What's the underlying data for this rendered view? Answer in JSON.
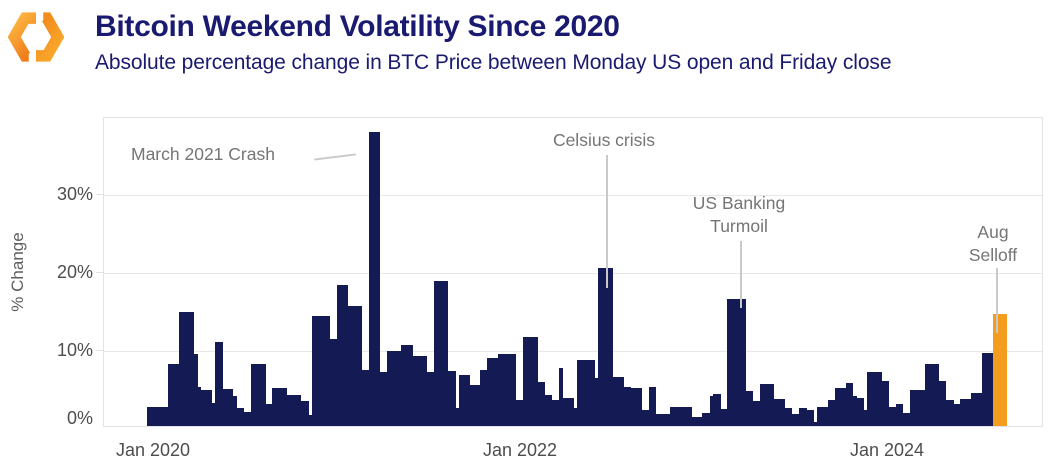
{
  "header": {
    "title": "Bitcoin Weekend Volatility Since 2020",
    "subtitle": "Absolute percentage change in BTC Price between Monday US open and Friday close",
    "logo": "orange-hexagon-ring-logo"
  },
  "chart_data": {
    "type": "bar",
    "title": "Bitcoin Weekend Volatility Since 2020",
    "subtitle": "Absolute percentage change in BTC Price between Monday US open and Friday close",
    "xlabel": "",
    "ylabel": "% Change",
    "x_unit": "week",
    "x_range": "Jan 2020 to Aug 2024",
    "x_tick_labels": [
      "Jan 2020",
      "Jan 2022",
      "Jan 2024"
    ],
    "y_tick_labels": [
      "0%",
      "10%",
      "20%",
      "30%"
    ],
    "ylim": [
      0,
      40
    ],
    "grid": "horizontal",
    "legend": "none",
    "bar_color": "#141b54",
    "highlight_color": "#f39c1e",
    "highlight_from_index": 236,
    "values": [
      2.4,
      2.4,
      2.4,
      2.4,
      2.4,
      2.4,
      8,
      8,
      8,
      14.7,
      14.7,
      14.7,
      14.7,
      9.3,
      5,
      4.6,
      4.6,
      4.6,
      3,
      10.8,
      10.8,
      4.8,
      4.8,
      4.8,
      3.8,
      2.3,
      2.3,
      1.8,
      1.8,
      8,
      8,
      8,
      8,
      2.8,
      2.8,
      4.9,
      4.9,
      4.9,
      4.9,
      4,
      4,
      4,
      4,
      3.2,
      3.2,
      1.4,
      14.2,
      14.2,
      14.2,
      14.2,
      14.2,
      11.2,
      11.2,
      18.2,
      18.2,
      18.2,
      15.5,
      15.5,
      15.5,
      15.5,
      7.2,
      7.2,
      37.9,
      37.9,
      37.9,
      7,
      7,
      9.6,
      9.6,
      9.6,
      9.6,
      10.4,
      10.4,
      10.4,
      9,
      9,
      9,
      9,
      7,
      7,
      18.6,
      18.6,
      18.6,
      18.6,
      7.1,
      7.1,
      2.3,
      6.6,
      6.6,
      6.6,
      5.3,
      5.3,
      5.3,
      7.2,
      7.2,
      8.8,
      8.8,
      8.8,
      9.3,
      9.3,
      9.3,
      9.3,
      9.3,
      3.3,
      3.3,
      11.5,
      11.5,
      11.5,
      11.5,
      5.7,
      5.7,
      4,
      4,
      3.4,
      3.4,
      7.5,
      3.6,
      3.6,
      3.6,
      2.3,
      8.5,
      8.5,
      8.5,
      8.5,
      8.5,
      6.2,
      20.3,
      20.3,
      20.3,
      20.3,
      6.3,
      6.3,
      6.3,
      5,
      5,
      4.9,
      4.9,
      4.9,
      2.1,
      2.1,
      5,
      5,
      1.6,
      1.6,
      1.6,
      1.6,
      2.4,
      2.4,
      2.5,
      2.5,
      2.5,
      2.5,
      1.2,
      1.2,
      1.2,
      1.7,
      1.7,
      3.8,
      4.1,
      4.1,
      2.2,
      2.2,
      16.3,
      16.3,
      16.3,
      16.3,
      16.3,
      4.5,
      4.5,
      3.2,
      3.2,
      5.4,
      5.4,
      5.4,
      5.4,
      3.5,
      3.5,
      3.5,
      2.3,
      2.3,
      1.5,
      1.5,
      2.3,
      2.3,
      2,
      2,
      0.5,
      2.4,
      2.4,
      2.4,
      3.3,
      3.3,
      4.9,
      4.9,
      4.9,
      5.5,
      5.5,
      3.9,
      3.6,
      3.6,
      2.1,
      7,
      7,
      7,
      7,
      5.8,
      5.8,
      2.4,
      2.4,
      2.8,
      2.8,
      1.7,
      1.7,
      4.6,
      4.6,
      4.6,
      4.6,
      8,
      8,
      8,
      8,
      5.8,
      5.8,
      3.3,
      3.3,
      2.8,
      2.8,
      3.5,
      3.5,
      3.5,
      4.3,
      4.3,
      4.3,
      9.4,
      9.4,
      9.4,
      14.4,
      14.4,
      14.4,
      14.4
    ],
    "annotations": [
      {
        "label": "March 2021 Crash",
        "value_pct": 37.9,
        "approx_date": "March 2021"
      },
      {
        "label": "Celsius crisis",
        "value_pct": 20.3,
        "approx_date": "June 2022"
      },
      {
        "label": "US Banking Turmoil",
        "value_pct": 16.3,
        "approx_date": "March 2023"
      },
      {
        "label": "Aug Selloff",
        "value_pct": 14.4,
        "approx_date": "August 2024"
      }
    ]
  }
}
